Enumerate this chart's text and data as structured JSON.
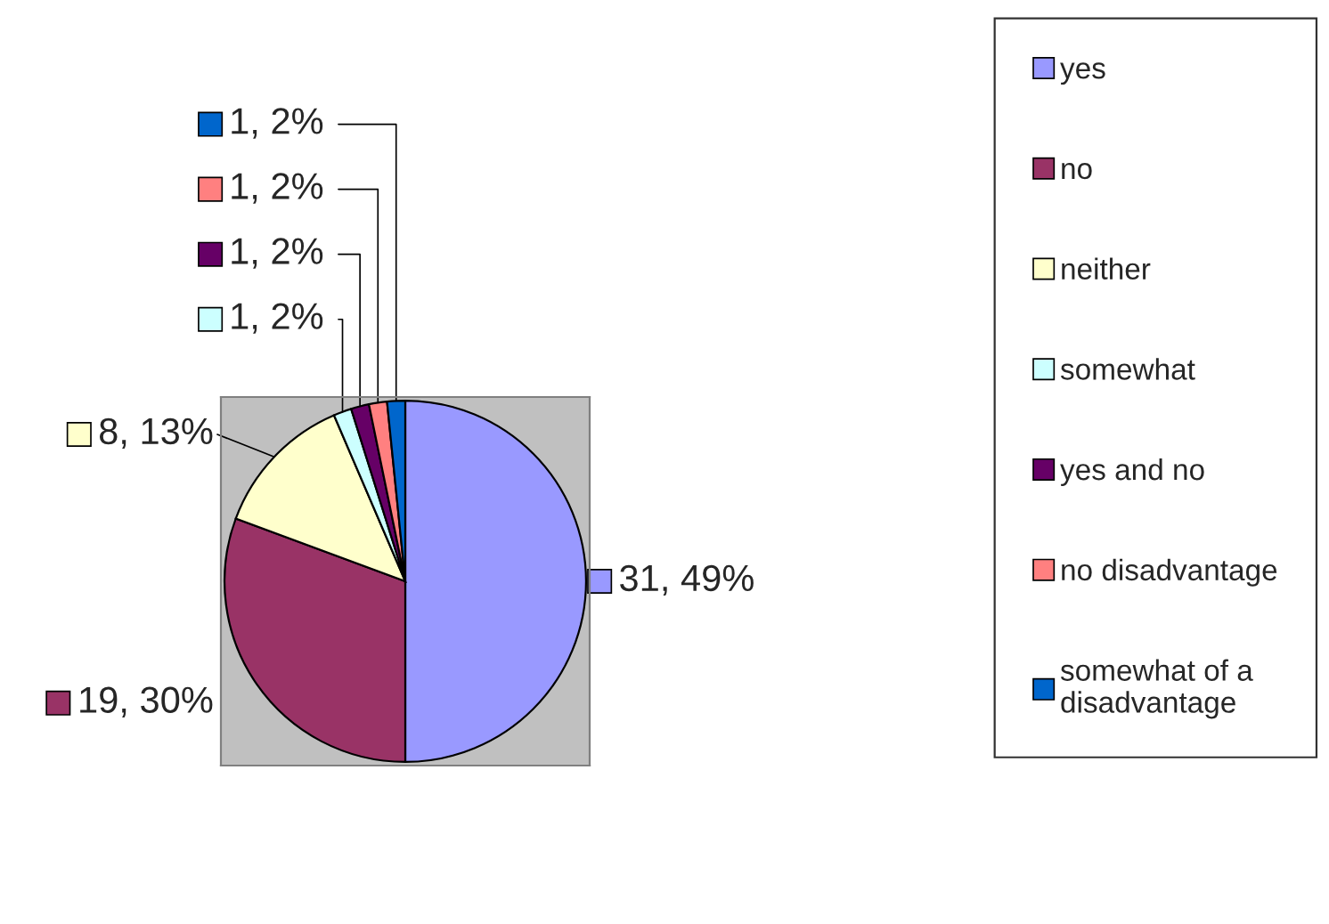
{
  "chart_data": {
    "type": "pie",
    "categories": [
      "yes",
      "no",
      "neither",
      "somewhat",
      "yes and no",
      "no disadvantage",
      "somewhat of a disadvantage"
    ],
    "values": [
      31,
      19,
      8,
      1,
      1,
      1,
      1
    ],
    "colors": [
      "#9999ff",
      "#993366",
      "#ffffcc",
      "#ccffff",
      "#660066",
      "#ff8080",
      "#0066cc"
    ],
    "value_labels": [
      "31, 49%",
      "19, 30%",
      "8, 13%",
      "1, 2%",
      "1, 2%",
      "1, 2%",
      "1, 2%"
    ],
    "legend": "right"
  }
}
